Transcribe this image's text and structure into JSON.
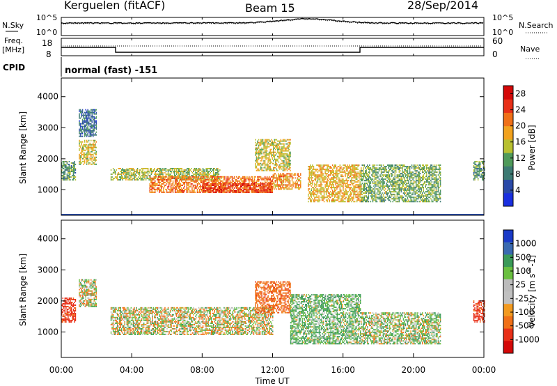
{
  "header": {
    "station": "Kerguelen (fitACF)",
    "beam": "Beam 15",
    "date": "28/Sep/2014"
  },
  "noise_panel": {
    "left_label": "N.Sky",
    "right_label": "N.Search",
    "left_ticks": [
      "10^5",
      "10^0"
    ],
    "right_ticks": [
      "10^5",
      "10^0"
    ]
  },
  "freq_panel": {
    "label_line1": "Freq.",
    "label_line2": "[MHz]",
    "left_ticks": [
      "18",
      "8"
    ],
    "right_ticks": [
      "60",
      "0"
    ],
    "right_label": "Nave",
    "cpid_label": "CPID",
    "cpid_text": "normal (fast) -151"
  },
  "time_axis": {
    "label": "Time UT",
    "ticks": [
      "00:00",
      "04:00",
      "08:00",
      "12:00",
      "16:00",
      "20:00",
      "00:00"
    ]
  },
  "colors": {
    "power_scale": [
      "#1a2fe0",
      "#2a4aa8",
      "#3d7a73",
      "#4f9a5a",
      "#b8c030",
      "#f2a21e",
      "#f07018",
      "#e83018",
      "#d40808"
    ],
    "velocity_scale": [
      "#d40808",
      "#e83018",
      "#f07018",
      "#f29a20",
      "#c0c0c0",
      "#bcbcbc",
      "#6ac040",
      "#3a9a58",
      "#3a6ab0",
      "#1a3ac8"
    ]
  },
  "chart_data": [
    {
      "type": "heatmap",
      "title": "Power",
      "xlabel": "Time UT",
      "ylabel": "Slant Range [km]",
      "xlim": [
        0,
        24
      ],
      "ylim": [
        180,
        4600
      ],
      "yticks": [
        "1000",
        "2000",
        "3000",
        "4000"
      ],
      "colorbar": {
        "label": "Power [dB]",
        "ticks": [
          "4",
          "8",
          "12",
          "16",
          "20",
          "24",
          "28"
        ],
        "range": [
          0,
          30
        ]
      },
      "features": [
        {
          "t_start": 0.0,
          "t_end": 0.8,
          "range_min": 1300,
          "range_max": 1900,
          "value": 10
        },
        {
          "t_start": 1.0,
          "t_end": 2.0,
          "range_min": 1800,
          "range_max": 2600,
          "value": 16
        },
        {
          "t_start": 1.0,
          "t_end": 2.0,
          "range_min": 2700,
          "range_max": 3600,
          "value": 6
        },
        {
          "t_start": 2.8,
          "t_end": 9.0,
          "range_min": 1300,
          "range_max": 1700,
          "value": 14
        },
        {
          "t_start": 5.0,
          "t_end": 12.0,
          "range_min": 900,
          "range_max": 1400,
          "value": 22
        },
        {
          "t_start": 8.0,
          "t_end": 12.0,
          "range_min": 900,
          "range_max": 1200,
          "value": 26
        },
        {
          "t_start": 11.0,
          "t_end": 13.0,
          "range_min": 1600,
          "range_max": 2600,
          "value": 16
        },
        {
          "t_start": 12.0,
          "t_end": 13.6,
          "range_min": 1000,
          "range_max": 1500,
          "value": 20
        },
        {
          "t_start": 14.0,
          "t_end": 17.0,
          "range_min": 600,
          "range_max": 1800,
          "value": 18
        },
        {
          "t_start": 17.0,
          "t_end": 21.5,
          "range_min": 600,
          "range_max": 1800,
          "value": 12
        },
        {
          "t_start": 23.4,
          "t_end": 24.0,
          "range_min": 1300,
          "range_max": 1900,
          "value": 10
        }
      ]
    },
    {
      "type": "heatmap",
      "title": "Velocity",
      "xlabel": "Time UT",
      "ylabel": "Slant Range [km]",
      "xlim": [
        0,
        24
      ],
      "ylim": [
        180,
        4600
      ],
      "yticks": [
        "1000",
        "2000",
        "3000",
        "4000"
      ],
      "colorbar": {
        "label": "Velocity [m s^-1]",
        "ticks": [
          "1000",
          "500",
          "100",
          "25",
          "-25",
          "-100",
          "-500",
          "-1000"
        ]
      },
      "features": [
        {
          "t_start": 0.0,
          "t_end": 0.8,
          "range_min": 1300,
          "range_max": 2100,
          "value": -400
        },
        {
          "t_start": 1.0,
          "t_end": 2.0,
          "range_min": 1800,
          "range_max": 2700,
          "value": 0
        },
        {
          "t_start": 2.8,
          "t_end": 12.0,
          "range_min": 900,
          "range_max": 1800,
          "value": 0
        },
        {
          "t_start": 11.0,
          "t_end": 13.0,
          "range_min": 1600,
          "range_max": 2600,
          "value": -200
        },
        {
          "t_start": 13.0,
          "t_end": 17.0,
          "range_min": 600,
          "range_max": 2200,
          "value": 100
        },
        {
          "t_start": 17.0,
          "t_end": 21.5,
          "range_min": 600,
          "range_max": 1600,
          "value": 50
        },
        {
          "t_start": 23.4,
          "t_end": 24.0,
          "range_min": 1300,
          "range_max": 2000,
          "value": -400
        }
      ]
    }
  ]
}
